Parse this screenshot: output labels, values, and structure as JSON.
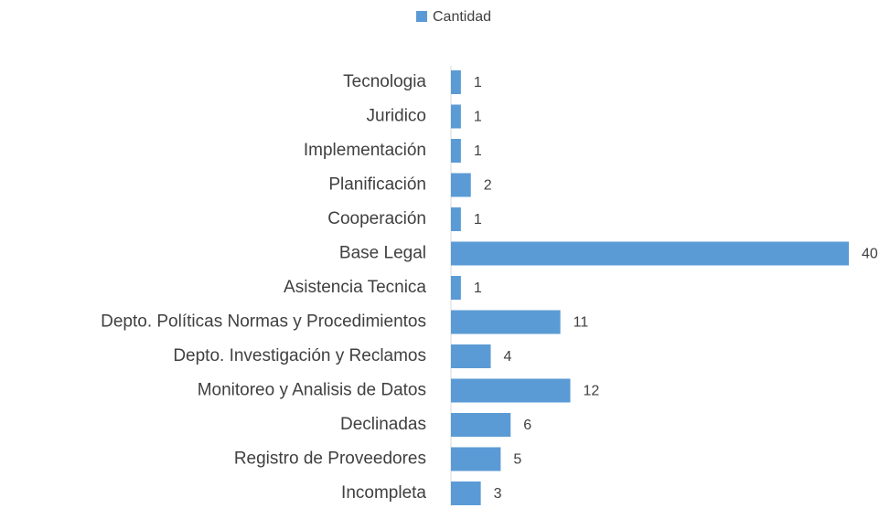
{
  "chart_data": {
    "type": "barh",
    "categories": [
      "Tecnologia",
      "Juridico",
      "Implementación",
      "Planificación",
      "Cooperación",
      "Base Legal",
      "Asistencia Tecnica",
      "Depto. Políticas Normas y Procedimientos",
      "Depto. Investigación y Reclamos",
      "Monitoreo y Analisis de Datos",
      "Declinadas",
      "Registro de Proveedores",
      "Incompleta"
    ],
    "series": [
      {
        "name": "Cantidad",
        "color": "#5b9bd5",
        "values": [
          1,
          1,
          1,
          2,
          1,
          40,
          1,
          11,
          4,
          12,
          6,
          5,
          3
        ]
      }
    ],
    "xlim": [
      0,
      40
    ],
    "legend": "top"
  }
}
